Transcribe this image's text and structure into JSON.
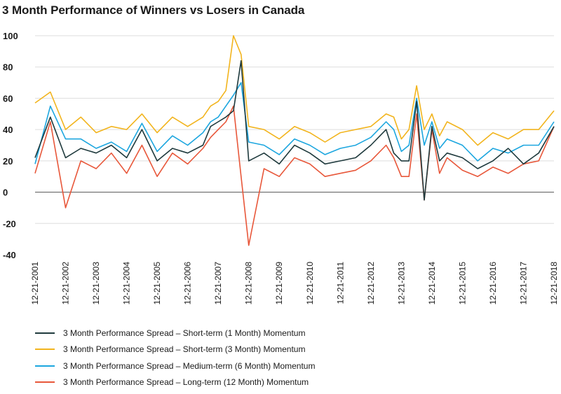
{
  "chart_data": {
    "type": "line",
    "title": "3 Month Performance of Winners vs Losers in Canada",
    "xlabel": "",
    "ylabel": "",
    "ylim": [
      -40,
      100
    ],
    "yticks": [
      "100",
      "80",
      "60",
      "40",
      "20",
      "0",
      "-20",
      "-40"
    ],
    "grid": true,
    "legend_position": "bottom",
    "x_tick_labels": [
      "12-21-2001",
      "12-21-2002",
      "12-21-2003",
      "12-21-2004",
      "12-21-2005",
      "12-21-2006",
      "12-21-2007",
      "12-21-2008",
      "12-21-2009",
      "12-21-2010",
      "12-21-2011",
      "12-21-2012",
      "12-21-2013",
      "12-21-2014",
      "12-21-2015",
      "12-21-2016",
      "12-21-2017",
      "12-21-2018"
    ],
    "x": [
      2001.97,
      2002.47,
      2002.97,
      2003.47,
      2003.97,
      2004.47,
      2004.97,
      2005.47,
      2005.97,
      2006.47,
      2006.97,
      2007.47,
      2007.72,
      2007.97,
      2008.22,
      2008.47,
      2008.72,
      2008.97,
      2009.47,
      2009.97,
      2010.47,
      2010.97,
      2011.47,
      2011.97,
      2012.47,
      2012.97,
      2013.47,
      2013.72,
      2013.97,
      2014.22,
      2014.47,
      2014.72,
      2014.97,
      2015.22,
      2015.47,
      2015.97,
      2016.47,
      2016.97,
      2017.47,
      2017.97,
      2018.47,
      2018.97
    ],
    "series": [
      {
        "name": "3 Month Performance Spread – Short-term (1 Month) Momentum",
        "color": "#1f3a3d",
        "values": [
          22,
          48,
          22,
          28,
          25,
          30,
          22,
          40,
          20,
          28,
          25,
          30,
          42,
          45,
          48,
          52,
          84,
          20,
          25,
          18,
          30,
          25,
          18,
          20,
          22,
          30,
          40,
          25,
          20,
          20,
          58,
          -5,
          42,
          20,
          25,
          22,
          15,
          20,
          28,
          18,
          25,
          42
        ]
      },
      {
        "name": "3 Month Performance Spread – Short-term (3 Month) Momentum",
        "color": "#f2b41d",
        "values": [
          57,
          64,
          40,
          48,
          38,
          42,
          40,
          50,
          38,
          48,
          42,
          48,
          55,
          58,
          65,
          100,
          88,
          42,
          40,
          34,
          42,
          38,
          32,
          38,
          40,
          42,
          50,
          48,
          34,
          40,
          68,
          40,
          50,
          36,
          45,
          40,
          30,
          38,
          34,
          40,
          40,
          52
        ]
      },
      {
        "name": "3 Month Performance Spread – Medium-term (6 Month) Momentum",
        "color": "#1ca6df",
        "values": [
          18,
          55,
          34,
          34,
          28,
          32,
          26,
          44,
          26,
          36,
          30,
          38,
          45,
          48,
          55,
          62,
          70,
          32,
          30,
          24,
          34,
          30,
          24,
          28,
          30,
          35,
          45,
          40,
          26,
          30,
          60,
          30,
          45,
          28,
          34,
          30,
          20,
          28,
          25,
          30,
          30,
          45
        ]
      },
      {
        "name": "3 Month Performance Spread – Long-term (12 Month) Momentum",
        "color": "#e8573a",
        "values": [
          12,
          45,
          -10,
          20,
          15,
          25,
          12,
          30,
          10,
          25,
          18,
          28,
          35,
          40,
          45,
          55,
          10,
          -34,
          15,
          10,
          22,
          18,
          10,
          12,
          14,
          20,
          30,
          22,
          10,
          10,
          50,
          -5,
          40,
          12,
          22,
          14,
          10,
          16,
          12,
          18,
          20,
          42
        ]
      }
    ]
  }
}
